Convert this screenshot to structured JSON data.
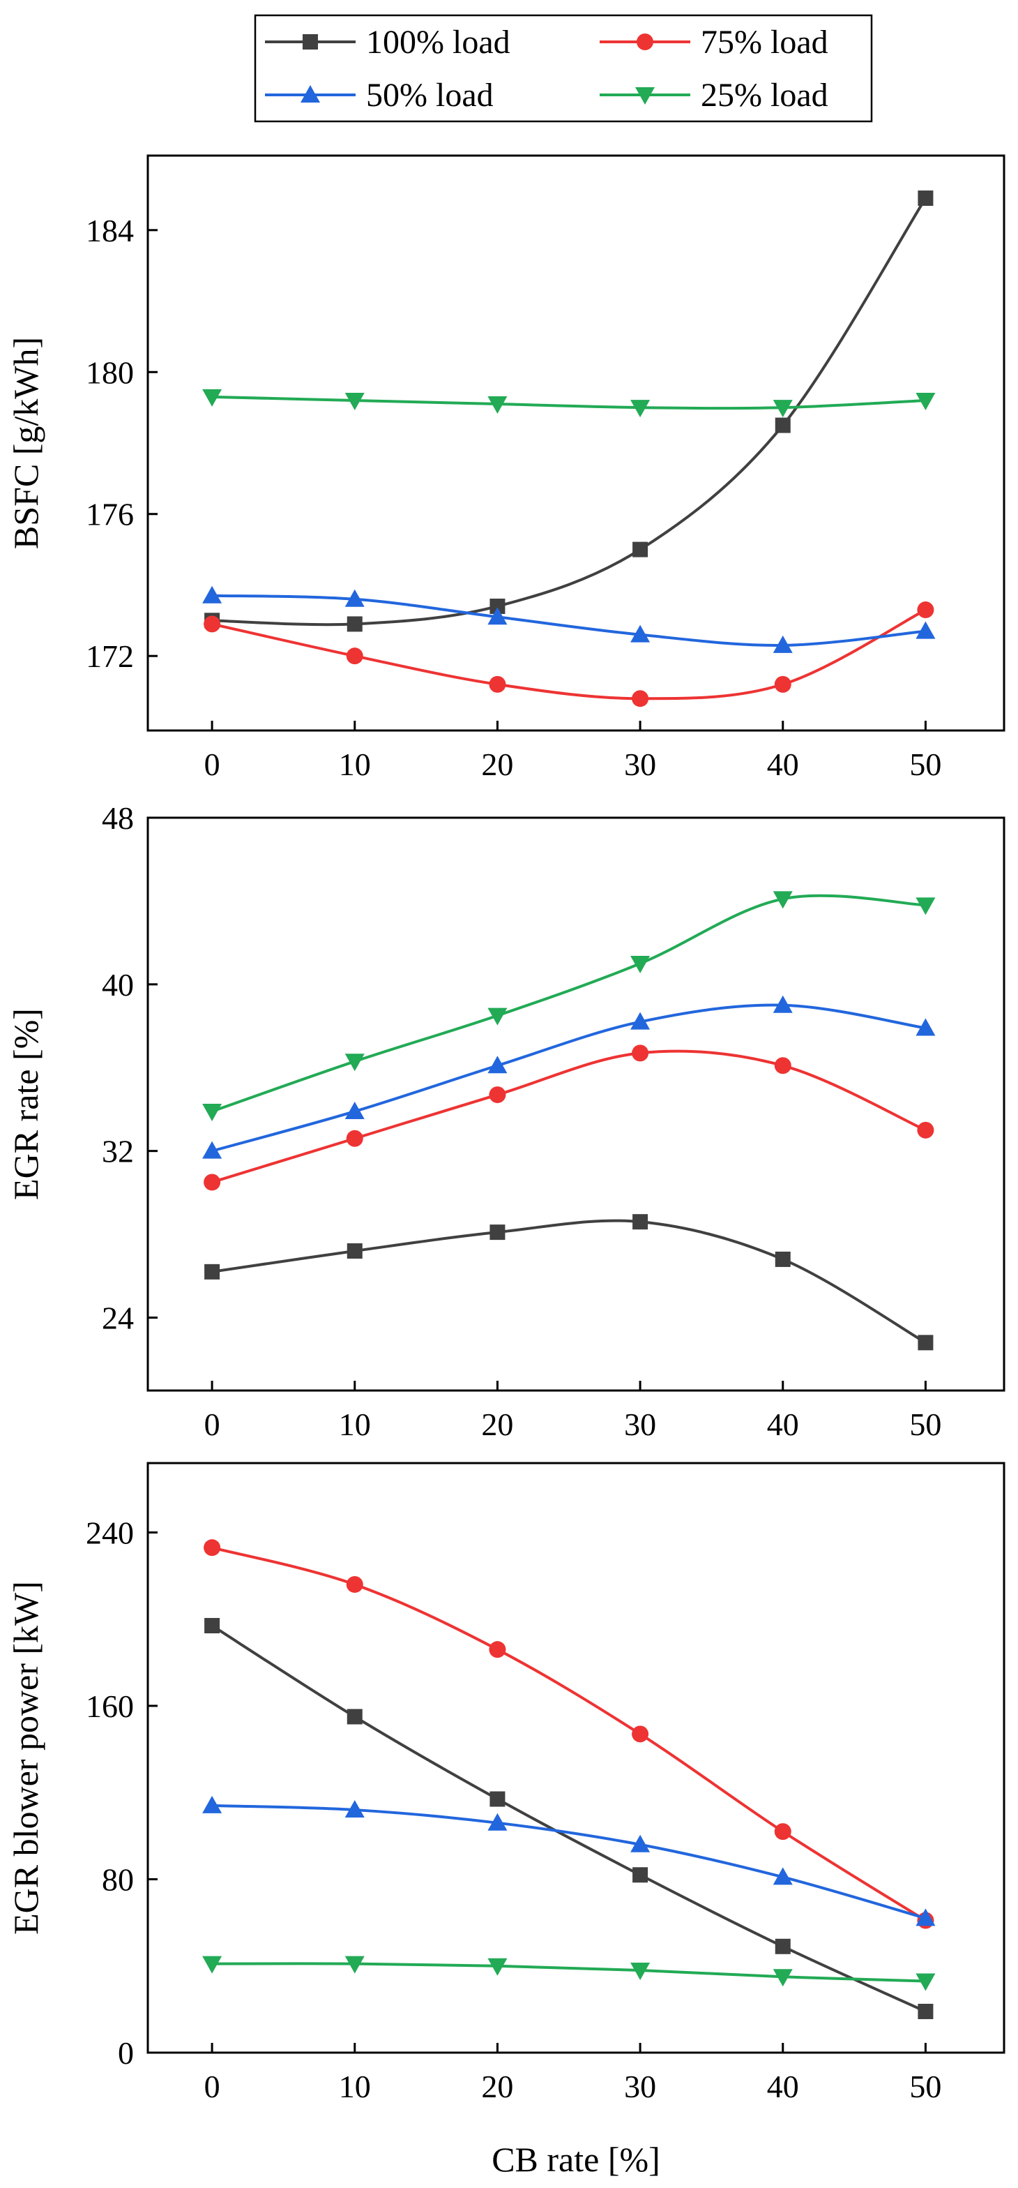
{
  "legend": [
    {
      "name": "100% load",
      "color": "#404040",
      "marker": "square"
    },
    {
      "name": "75% load",
      "color": "#ee3333",
      "marker": "circle"
    },
    {
      "name": "50% load",
      "color": "#2266dd",
      "marker": "triangle-up"
    },
    {
      "name": "25% load",
      "color": "#22aa55",
      "marker": "triangle-down"
    }
  ],
  "chart_data": [
    {
      "type": "line",
      "title": "",
      "xlabel": "",
      "ylabel": "BSFC [g/kWh]",
      "x": [
        0,
        10,
        20,
        30,
        40,
        50
      ],
      "xticks": [
        "0",
        "10",
        "20",
        "30",
        "40",
        "50"
      ],
      "xlim": [
        -4.5,
        55.5
      ],
      "ylim": [
        169.9,
        186.1
      ],
      "yticks": [
        "172",
        "176",
        "180",
        "184"
      ],
      "series": [
        {
          "name": "100% load",
          "values": [
            173.0,
            172.9,
            173.4,
            175.0,
            178.5,
            184.9
          ]
        },
        {
          "name": "75% load",
          "values": [
            172.9,
            172.0,
            171.2,
            170.8,
            171.2,
            173.3
          ]
        },
        {
          "name": "50% load",
          "values": [
            173.7,
            173.6,
            173.1,
            172.6,
            172.3,
            172.7
          ]
        },
        {
          "name": "25% load",
          "values": [
            179.3,
            179.2,
            179.1,
            179.0,
            179.0,
            179.2
          ]
        }
      ]
    },
    {
      "type": "line",
      "title": "",
      "xlabel": "",
      "ylabel": "EGR rate [%]",
      "x": [
        0,
        10,
        20,
        30,
        40,
        50
      ],
      "xticks": [
        "0",
        "10",
        "20",
        "30",
        "40",
        "50"
      ],
      "xlim": [
        -4.5,
        55.5
      ],
      "ylim": [
        20.5,
        48
      ],
      "yticks": [
        "24",
        "32",
        "40",
        "48"
      ],
      "series": [
        {
          "name": "100% load",
          "values": [
            26.2,
            27.2,
            28.1,
            28.6,
            26.8,
            22.8
          ]
        },
        {
          "name": "75% load",
          "values": [
            30.5,
            32.6,
            34.7,
            36.7,
            36.1,
            33.0
          ]
        },
        {
          "name": "50% load",
          "values": [
            32.0,
            33.9,
            36.1,
            38.2,
            39.0,
            37.9
          ]
        },
        {
          "name": "25% load",
          "values": [
            33.9,
            36.3,
            38.5,
            41.0,
            44.1,
            43.8
          ]
        }
      ]
    },
    {
      "type": "line",
      "title": "",
      "xlabel": "CB rate [%]",
      "ylabel": "EGR blower power [kW]",
      "x": [
        0,
        10,
        20,
        30,
        40,
        50
      ],
      "xticks": [
        "0",
        "10",
        "20",
        "30",
        "40",
        "50"
      ],
      "xlim": [
        -4.5,
        55.5
      ],
      "ylim": [
        0,
        272
      ],
      "yticks": [
        "0",
        "80",
        "160",
        "240"
      ],
      "series": [
        {
          "name": "100% load",
          "values": [
            197,
            155,
            117,
            82,
            49,
            19
          ]
        },
        {
          "name": "75% load",
          "values": [
            233,
            216,
            186,
            147,
            102,
            61
          ]
        },
        {
          "name": "50% load",
          "values": [
            114,
            112,
            106,
            96,
            81,
            62
          ]
        },
        {
          "name": "25% load",
          "values": [
            41,
            41,
            40,
            38,
            35,
            33
          ]
        }
      ]
    }
  ]
}
